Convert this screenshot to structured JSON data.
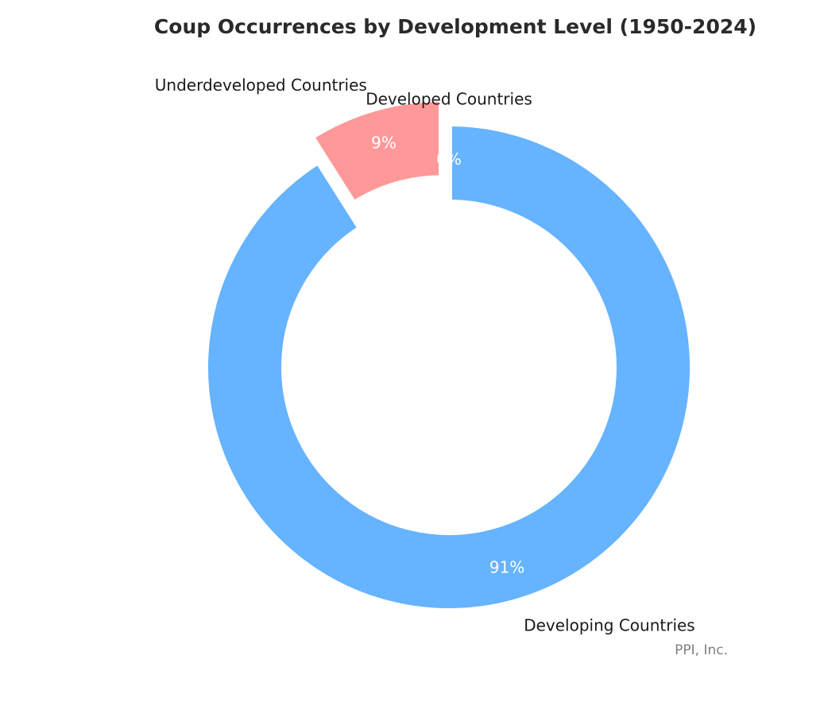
{
  "chart_data": {
    "type": "pie",
    "donut": true,
    "title": "Coup Occurrences by Development Level (1950-2024)",
    "categories": [
      "Developed Countries",
      "Underdeveloped Countries",
      "Developing Countries"
    ],
    "values": [
      0,
      9,
      91
    ],
    "percent_labels": [
      "0%",
      "9%",
      "91%"
    ],
    "colors": [
      "#66b3ff",
      "#ff9999",
      "#66b3ff"
    ],
    "exploded": [
      false,
      true,
      false
    ],
    "start_angle": "top, counterclockwise",
    "legend": "none",
    "credit": "PPI, Inc."
  }
}
